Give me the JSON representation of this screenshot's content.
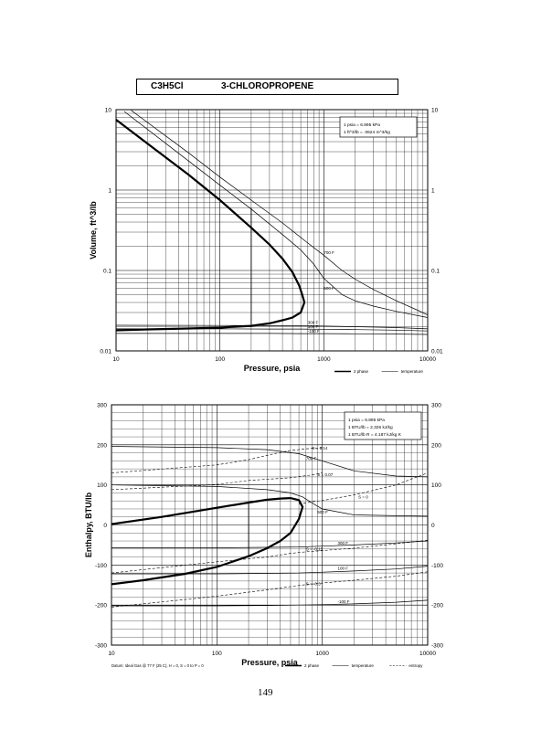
{
  "header": {
    "formula": "C3H5Cl",
    "name": "3-CHLOROPROPENE"
  },
  "page_number": "149",
  "chart_data": [
    {
      "type": "line",
      "xlabel": "Pressure,  psia",
      "ylabel": "Volume, ft^3/lb",
      "x_scale": "log",
      "y_scale": "log",
      "xlim": [
        10,
        10000
      ],
      "ylim": [
        0.01,
        10
      ],
      "x_ticks": [
        {
          "value": 10,
          "label": "10"
        },
        {
          "value": 100,
          "label": "100"
        },
        {
          "value": 1000,
          "label": "1000"
        },
        {
          "value": 10000,
          "label": "10000"
        }
      ],
      "y_ticks": [
        {
          "value": 0.01,
          "label": "0.01"
        },
        {
          "value": 0.1,
          "label": "0.1"
        },
        {
          "value": 1,
          "label": "1"
        },
        {
          "value": 10,
          "label": "10"
        }
      ],
      "grid": true,
      "conversion_box": [
        "1 psia  =  6.895 kPa",
        "1 ft^3/lb  =  .0624 m^3/kg"
      ],
      "legend": [
        {
          "label": "2 phase",
          "style": "thick"
        },
        {
          "label": "temperature",
          "style": "thin"
        }
      ],
      "two_phase_dome": {
        "x": [
          10,
          20,
          50,
          100,
          200,
          300,
          400,
          500,
          580,
          620,
          650,
          600,
          500,
          400,
          300,
          200,
          100,
          50,
          20,
          10
        ],
        "y": [
          7.5,
          3.8,
          1.55,
          0.75,
          0.34,
          0.21,
          0.14,
          0.095,
          0.065,
          0.05,
          0.04,
          0.03,
          0.026,
          0.024,
          0.022,
          0.0205,
          0.0195,
          0.019,
          0.0185,
          0.018
        ]
      },
      "quality_line": {
        "x": [
          200,
          200
        ],
        "y": [
          0.0205,
          0.6
        ]
      },
      "temperature_lines": [
        {
          "label": "700 F",
          "x": [
            14,
            50,
            100,
            200,
            400,
            700,
            1000,
            1500,
            2000,
            3000,
            5000,
            8000,
            10000
          ],
          "y": [
            9.8,
            2.9,
            1.45,
            0.75,
            0.39,
            0.22,
            0.155,
            0.1,
            0.078,
            0.058,
            0.042,
            0.032,
            0.028
          ]
        },
        {
          "label": "500 F",
          "x": [
            12,
            50,
            100,
            200,
            400,
            600,
            800,
            1000,
            1500,
            2000,
            3000,
            5000,
            10000
          ],
          "y": [
            9.5,
            2.3,
            1.15,
            0.58,
            0.28,
            0.18,
            0.12,
            0.08,
            0.05,
            0.042,
            0.036,
            0.031,
            0.026
          ]
        },
        {
          "label": "300 F",
          "x": [
            10,
            100,
            300,
            600,
            1000,
            2000,
            5000,
            10000
          ],
          "y": [
            0.0208,
            0.0207,
            0.0206,
            0.0205,
            0.0203,
            0.02,
            0.0195,
            0.0188
          ]
        },
        {
          "label": "100 F",
          "x": [
            10,
            100,
            300,
            600,
            1000,
            2000,
            5000,
            10000
          ],
          "y": [
            0.0188,
            0.0188,
            0.0187,
            0.0187,
            0.0186,
            0.0184,
            0.0181,
            0.0177
          ]
        },
        {
          "label": "-100 F",
          "x": [
            10,
            100,
            300,
            600,
            1000,
            2000,
            5000,
            10000
          ],
          "y": [
            0.0165,
            0.0165,
            0.0165,
            0.0164,
            0.0164,
            0.0163,
            0.0162,
            0.016
          ]
        }
      ]
    },
    {
      "type": "line",
      "xlabel": "Pressure,  psia",
      "ylabel": "Enthalpy, BTU/lb",
      "x_scale": "log",
      "y_scale": "linear",
      "xlim": [
        10,
        10000
      ],
      "ylim": [
        -300,
        300
      ],
      "x_ticks": [
        {
          "value": 10,
          "label": "10"
        },
        {
          "value": 100,
          "label": "100"
        },
        {
          "value": 1000,
          "label": "1000"
        },
        {
          "value": 10000,
          "label": "10000"
        }
      ],
      "y_ticks": [
        {
          "value": -300,
          "label": "-300"
        },
        {
          "value": -200,
          "label": "-200"
        },
        {
          "value": -100,
          "label": "-100"
        },
        {
          "value": 0,
          "label": "0"
        },
        {
          "value": 100,
          "label": "100"
        },
        {
          "value": 200,
          "label": "200"
        },
        {
          "value": 300,
          "label": "300"
        }
      ],
      "grid": true,
      "conversion_box": [
        "1 psia  =  6.895 kPa",
        "1 BTU/lb  =  2.326 kJ/kg",
        "1 BTU/lb R  =  4.187 kJ/kg K"
      ],
      "footnote": "Datum: Ideal Gas @ 77 F (25 C),  H = 0,  S = 0 to P = 0",
      "legend": [
        {
          "label": "2 phase",
          "style": "thick"
        },
        {
          "label": "temperature",
          "style": "thin"
        },
        {
          "label": "entropy",
          "style": "dashed"
        }
      ],
      "two_phase_dome": {
        "x": [
          10,
          30,
          100,
          200,
          300,
          400,
          500,
          600,
          650,
          600,
          500,
          400,
          300,
          200,
          100,
          50,
          20,
          10
        ],
        "y": [
          2,
          20,
          43,
          56,
          63,
          66,
          67,
          62,
          45,
          15,
          -20,
          -40,
          -58,
          -78,
          -105,
          -122,
          -138,
          -148
        ]
      },
      "quality_line": {
        "x": [
          200,
          200
        ],
        "y": [
          -78,
          56
        ]
      },
      "temperature_lines": [
        {
          "label": "700 F",
          "x": [
            10,
            100,
            300,
            600,
            1000,
            2000,
            5000,
            10000
          ],
          "y": [
            196,
            193,
            188,
            178,
            160,
            135,
            122,
            120
          ]
        },
        {
          "label": "500 F",
          "x": [
            10,
            100,
            300,
            500,
            650,
            800,
            1000,
            2000,
            5000,
            10000
          ],
          "y": [
            100,
            96,
            88,
            80,
            70,
            55,
            40,
            25,
            23,
            22
          ]
        },
        {
          "label": "300 F",
          "x": [
            10,
            100,
            300,
            600,
            1000,
            2000,
            5000,
            10000
          ],
          "y": [
            -57,
            -57,
            -56,
            -55,
            -53,
            -50,
            -45,
            -40
          ]
        },
        {
          "label": "100 F",
          "x": [
            10,
            100,
            300,
            600,
            1000,
            2000,
            5000,
            10000
          ],
          "y": [
            -122,
            -122,
            -121,
            -120,
            -118,
            -115,
            -110,
            -103
          ]
        },
        {
          "label": "-100 F",
          "x": [
            10,
            100,
            300,
            600,
            1000,
            2000,
            5000,
            10000
          ],
          "y": [
            -202,
            -202,
            -201,
            -200,
            -199,
            -197,
            -193,
            -188
          ]
        }
      ],
      "entropy_lines": [
        {
          "label": "S = 0.14",
          "x": [
            10,
            100,
            200,
            350,
            500,
            700,
            1000
          ],
          "y": [
            130,
            150,
            163,
            178,
            186,
            190,
            193
          ]
        },
        {
          "label": "S = 0.07",
          "x": [
            10,
            100,
            200,
            300,
            500,
            800,
            1000
          ],
          "y": [
            88,
            101,
            111,
            114,
            118,
            125,
            130
          ]
        },
        {
          "label": "S = 0",
          "x": [
            600,
            800,
            1000,
            2000,
            5000,
            10000
          ],
          "y": [
            52,
            58,
            61,
            75,
            100,
            130
          ]
        },
        {
          "label": "S = -0.15",
          "x": [
            10,
            100,
            300,
            500,
            700,
            1000,
            2000,
            5000,
            10000
          ],
          "y": [
            -120,
            -92,
            -80,
            -71,
            -67,
            -64,
            -58,
            -47,
            -38
          ]
        },
        {
          "label": "S = -0.3",
          "x": [
            10,
            100,
            300,
            500,
            700,
            1000,
            2000,
            5000,
            10000
          ],
          "y": [
            -205,
            -178,
            -162,
            -154,
            -149,
            -145,
            -138,
            -128,
            -117
          ]
        }
      ]
    }
  ]
}
